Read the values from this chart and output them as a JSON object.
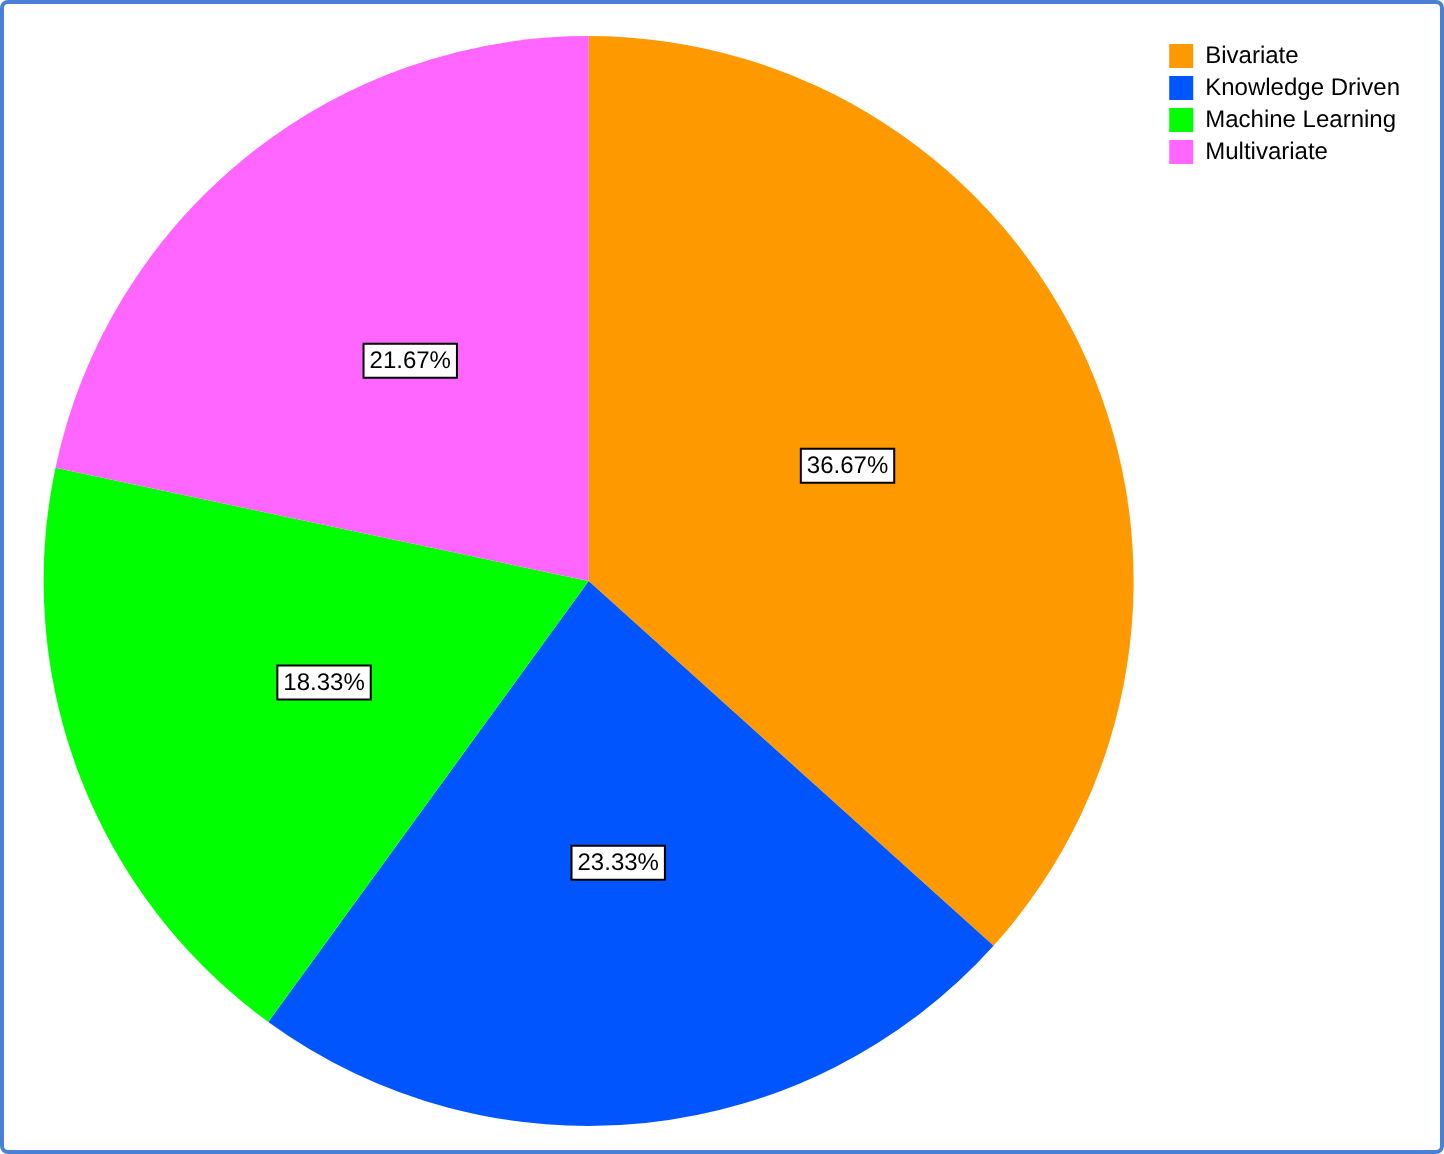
{
  "chart_data": {
    "type": "pie",
    "categories": [
      "Bivariate",
      "Knowledge Driven",
      "Machine Learning",
      "Multivariate"
    ],
    "values": [
      36.67,
      23.33,
      18.33,
      21.67
    ],
    "colors": [
      "#ff9900",
      "#0055ff",
      "#00ff00",
      "#ff66ff"
    ],
    "value_labels": [
      "36.67%",
      "23.33%",
      "18.33%",
      "21.67%"
    ],
    "legend": "top right"
  }
}
